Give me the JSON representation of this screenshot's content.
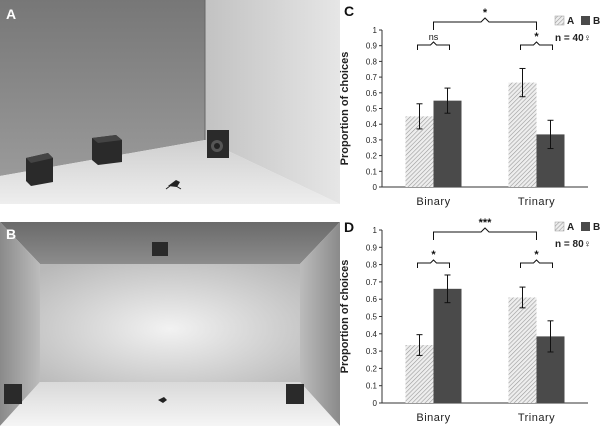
{
  "panels": {
    "a": {
      "letter": "A"
    },
    "b": {
      "letter": "B"
    },
    "c": {
      "letter": "C"
    },
    "d": {
      "letter": "D"
    }
  },
  "colors": {
    "bar_a_fill": "#d8d8d8",
    "bar_b_fill": "#4a4a4a",
    "axis": "#333333"
  },
  "chart_data": [
    {
      "panel": "C",
      "type": "bar",
      "ylabel": "Proportion of choices",
      "ylim": [
        0,
        1
      ],
      "yticks": [
        "0",
        "0.1",
        "0.2",
        "0.3",
        "0.4",
        "0.5",
        "0.6",
        "0.7",
        "0.8",
        "0.9",
        "1"
      ],
      "categories": [
        "Binary",
        "Trinary"
      ],
      "series": [
        {
          "name": "A",
          "values": [
            0.45,
            0.665
          ],
          "errors": [
            0.08,
            0.09
          ]
        },
        {
          "name": "B",
          "values": [
            0.55,
            0.335
          ],
          "errors": [
            0.08,
            0.09
          ]
        }
      ],
      "legend": {
        "a": "A",
        "b": "B",
        "n": "n = 40♀"
      },
      "significance": {
        "within": [
          "ns",
          "*"
        ],
        "between": "*"
      }
    },
    {
      "panel": "D",
      "type": "bar",
      "ylabel": "Proportion of choices",
      "ylim": [
        0,
        1
      ],
      "yticks": [
        "0",
        "0.1",
        "0.2",
        "0.3",
        "0.4",
        "0.5",
        "0.6",
        "0.7",
        "0.8",
        "0.9",
        "1"
      ],
      "categories": [
        "Binary",
        "Trinary"
      ],
      "series": [
        {
          "name": "A",
          "values": [
            0.335,
            0.61
          ],
          "errors": [
            0.06,
            0.06
          ]
        },
        {
          "name": "B",
          "values": [
            0.66,
            0.385
          ],
          "errors": [
            0.08,
            0.09
          ]
        }
      ],
      "legend": {
        "a": "A",
        "b": "B",
        "n": "n = 80♀"
      },
      "significance": {
        "within": [
          "*",
          "*"
        ],
        "between": "***"
      }
    }
  ]
}
